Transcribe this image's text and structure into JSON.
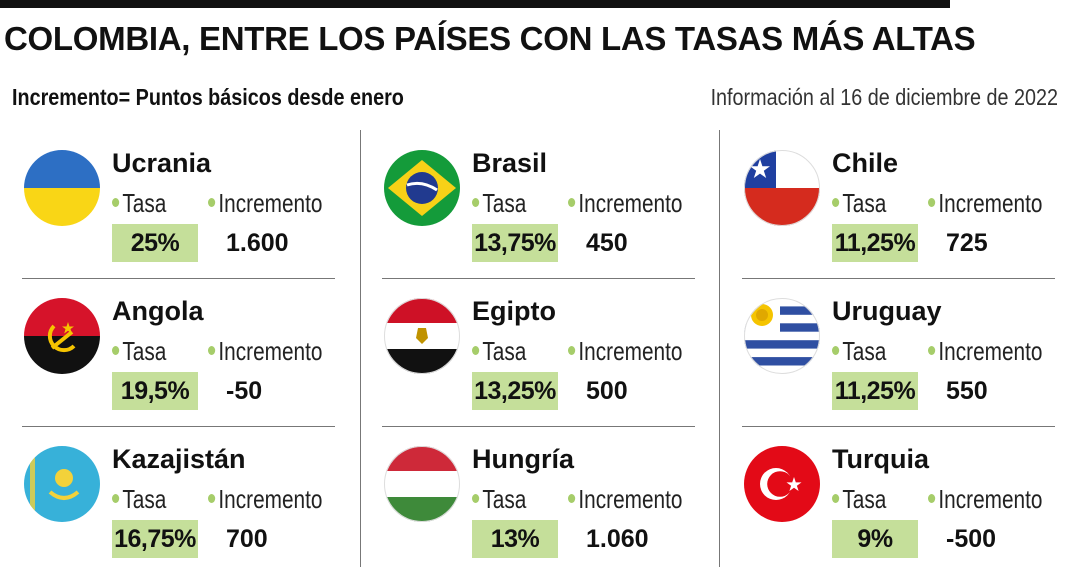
{
  "title": "COLOMBIA, ENTRE LOS PAÍSES CON LAS TASAS MÁS ALTAS",
  "subtitle": "Incremento= Puntos básicos desde enero",
  "info": "Información al 16 de diciembre de 2022",
  "labels": {
    "tasa": "Tasa",
    "incremento": "Incremento"
  },
  "colors": {
    "accent_green": "#c5df9a",
    "bullet_green": "#a6cd6a"
  },
  "countries": [
    {
      "name": "Ucrania",
      "tasa": "25%",
      "incremento": "1.600",
      "flag": "ukraine-flag-icon"
    },
    {
      "name": "Brasil",
      "tasa": "13,75%",
      "incremento": "450",
      "flag": "brazil-flag-icon"
    },
    {
      "name": "Chile",
      "tasa": "11,25%",
      "incremento": "725",
      "flag": "chile-flag-icon"
    },
    {
      "name": "Angola",
      "tasa": "19,5%",
      "incremento": "-50",
      "flag": "angola-flag-icon"
    },
    {
      "name": "Egipto",
      "tasa": "13,25%",
      "incremento": "500",
      "flag": "egypt-flag-icon"
    },
    {
      "name": "Uruguay",
      "tasa": "11,25%",
      "incremento": "550",
      "flag": "uruguay-flag-icon"
    },
    {
      "name": "Kazajistán",
      "tasa": "16,75%",
      "incremento": "700",
      "flag": "kazakhstan-flag-icon"
    },
    {
      "name": "Hungría",
      "tasa": "13%",
      "incremento": "1.060",
      "flag": "hungary-flag-icon"
    },
    {
      "name": "Turquia",
      "tasa": "9%",
      "incremento": "-500",
      "flag": "turkey-flag-icon"
    }
  ]
}
